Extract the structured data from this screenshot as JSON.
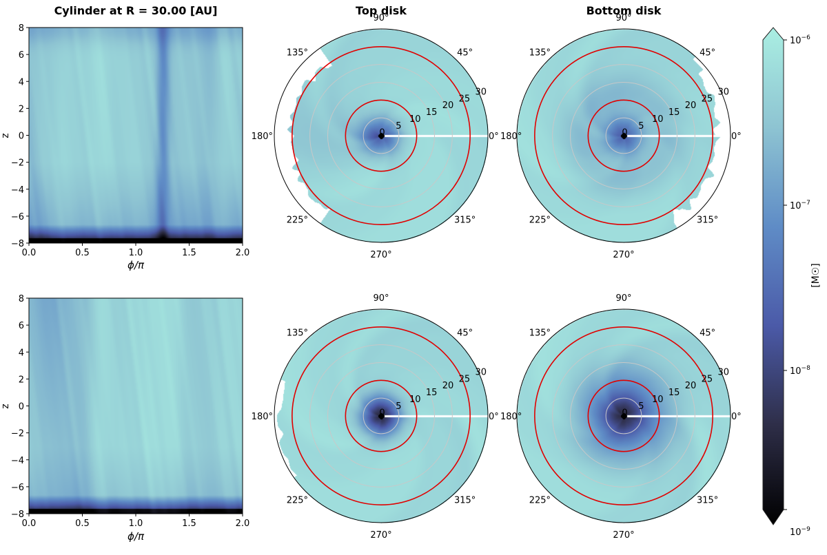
{
  "chart_data": [
    {
      "type": "heatmap",
      "panel": "cylinder-top",
      "title": "Cylinder at R = 30.00 [AU]",
      "xlabel": "ϕ/π",
      "ylabel": "z",
      "xlim": [
        0,
        2
      ],
      "ylim": [
        -8,
        8
      ],
      "xticks": [
        "0.0",
        "0.5",
        "1.0",
        "1.5",
        "2.0"
      ],
      "yticks": [
        "8",
        "6",
        "4",
        "2",
        "0",
        "−2",
        "−4",
        "−6",
        "−8"
      ]
    },
    {
      "type": "heatmap",
      "panel": "cylinder-bottom",
      "title": "",
      "xlabel": "ϕ/π",
      "ylabel": "z",
      "xlim": [
        0,
        2
      ],
      "ylim": [
        -8,
        8
      ],
      "xticks": [
        "0.0",
        "0.5",
        "1.0",
        "1.5",
        "2.0"
      ],
      "yticks": [
        "8",
        "6",
        "4",
        "2",
        "0",
        "−2",
        "−4",
        "−6",
        "−8"
      ]
    },
    {
      "type": "heatmap",
      "panel": "polar-top-disk-1",
      "title": "Top disk",
      "rlim": [
        0,
        30
      ]
    },
    {
      "type": "heatmap",
      "panel": "polar-bottom-disk-1",
      "title": "Bottom disk",
      "rlim": [
        0,
        30
      ]
    },
    {
      "type": "heatmap",
      "panel": "polar-top-disk-2",
      "title": "",
      "rlim": [
        0,
        30
      ]
    },
    {
      "type": "heatmap",
      "panel": "polar-bottom-disk-2",
      "title": "",
      "rlim": [
        0,
        30
      ]
    }
  ],
  "polar": {
    "radial_ticks": [
      "0",
      "5",
      "10",
      "15",
      "20",
      "25",
      "30"
    ],
    "angle_labels": [
      "0°",
      "45°",
      "90°",
      "135°",
      "180°",
      "225°",
      "270°",
      "315°"
    ],
    "red_circle_radii": [
      10,
      25
    ],
    "grid_color": "#c8c8c8",
    "highlight_color": "#e00000"
  },
  "colorbar": {
    "label": "[M☉]",
    "scale": "log",
    "range": [
      1e-09,
      1e-06
    ],
    "ticks": [
      {
        "base": "10",
        "exp": "−6"
      },
      {
        "base": "10",
        "exp": "−7"
      },
      {
        "base": "10",
        "exp": "−8"
      },
      {
        "base": "10",
        "exp": "−9"
      }
    ],
    "colormap": [
      "#000000",
      "#2e2e48",
      "#4b5aa8",
      "#5f8cc6",
      "#8ec4d2",
      "#aaeee2"
    ]
  }
}
